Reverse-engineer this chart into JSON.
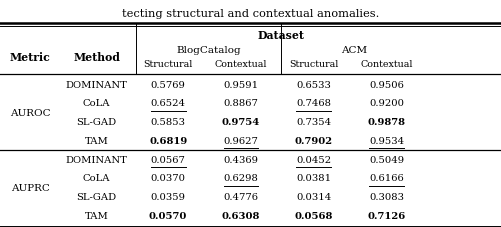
{
  "title_partial": "tecting structural and contextual anomalies.",
  "dataset_header": "Dataset",
  "blog_header": "BlogCatalog",
  "acm_header": "ACM",
  "metrics": [
    "AUROC",
    "AUPRC"
  ],
  "methods": [
    "DOMINANT",
    "CoLA",
    "SL-GAD",
    "TAM"
  ],
  "data": {
    "AUROC": {
      "DOMINANT": {
        "BC_S": "0.5769",
        "BC_C": "0.9591",
        "ACM_S": "0.6533",
        "ACM_C": "0.9506"
      },
      "CoLA": {
        "BC_S": "0.6524",
        "BC_C": "0.8867",
        "ACM_S": "0.7468",
        "ACM_C": "0.9200"
      },
      "SL-GAD": {
        "BC_S": "0.5853",
        "BC_C": "0.9754",
        "ACM_S": "0.7354",
        "ACM_C": "0.9878"
      },
      "TAM": {
        "BC_S": "0.6819",
        "BC_C": "0.9627",
        "ACM_S": "0.7902",
        "ACM_C": "0.9534"
      }
    },
    "AUPRC": {
      "DOMINANT": {
        "BC_S": "0.0567",
        "BC_C": "0.4369",
        "ACM_S": "0.0452",
        "ACM_C": "0.5049"
      },
      "CoLA": {
        "BC_S": "0.0370",
        "BC_C": "0.6298",
        "ACM_S": "0.0381",
        "ACM_C": "0.6166"
      },
      "SL-GAD": {
        "BC_S": "0.0359",
        "BC_C": "0.4776",
        "ACM_S": "0.0314",
        "ACM_C": "0.3083"
      },
      "TAM": {
        "BC_S": "0.0570",
        "BC_C": "0.6308",
        "ACM_S": "0.0568",
        "ACM_C": "0.7126"
      }
    }
  },
  "bold": {
    "AUROC": {
      "DOMINANT": {
        "BC_S": false,
        "BC_C": false,
        "ACM_S": false,
        "ACM_C": false
      },
      "CoLA": {
        "BC_S": false,
        "BC_C": false,
        "ACM_S": false,
        "ACM_C": false
      },
      "SL-GAD": {
        "BC_S": false,
        "BC_C": true,
        "ACM_S": false,
        "ACM_C": true
      },
      "TAM": {
        "BC_S": true,
        "BC_C": false,
        "ACM_S": true,
        "ACM_C": false
      }
    },
    "AUPRC": {
      "DOMINANT": {
        "BC_S": false,
        "BC_C": false,
        "ACM_S": false,
        "ACM_C": false
      },
      "CoLA": {
        "BC_S": false,
        "BC_C": false,
        "ACM_S": false,
        "ACM_C": false
      },
      "SL-GAD": {
        "BC_S": false,
        "BC_C": false,
        "ACM_S": false,
        "ACM_C": false
      },
      "TAM": {
        "BC_S": true,
        "BC_C": true,
        "ACM_S": true,
        "ACM_C": true
      }
    }
  },
  "underline": {
    "AUROC": {
      "DOMINANT": {
        "BC_S": false,
        "BC_C": false,
        "ACM_S": false,
        "ACM_C": false
      },
      "CoLA": {
        "BC_S": true,
        "BC_C": false,
        "ACM_S": true,
        "ACM_C": false
      },
      "SL-GAD": {
        "BC_S": false,
        "BC_C": false,
        "ACM_S": false,
        "ACM_C": false
      },
      "TAM": {
        "BC_S": false,
        "BC_C": true,
        "ACM_S": false,
        "ACM_C": true
      }
    },
    "AUPRC": {
      "DOMINANT": {
        "BC_S": true,
        "BC_C": false,
        "ACM_S": true,
        "ACM_C": false
      },
      "CoLA": {
        "BC_S": false,
        "BC_C": true,
        "ACM_S": false,
        "ACM_C": true
      },
      "SL-GAD": {
        "BC_S": false,
        "BC_C": false,
        "ACM_S": false,
        "ACM_C": false
      },
      "TAM": {
        "BC_S": false,
        "BC_C": false,
        "ACM_S": false,
        "ACM_C": false
      }
    }
  },
  "figsize": [
    5.02,
    2.28
  ],
  "dpi": 100
}
